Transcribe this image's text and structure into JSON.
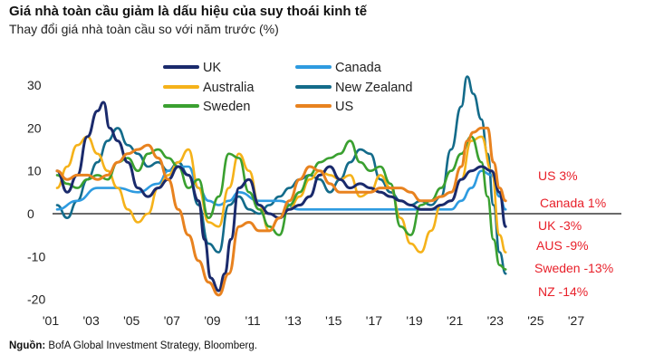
{
  "title": "Giá nhà toàn cầu giảm là dấu hiệu của suy thoái kinh tế",
  "subtitle": "Thay đổi giá nhà toàn cầu so với năm trước (%)",
  "source": {
    "label": "Nguồn:",
    "text": " BofA Global Investment Strategy, Bloomberg."
  },
  "colors": {
    "uk": "#1a2a6c",
    "canada": "#2e9be0",
    "australia": "#f5b21a",
    "new_zealand": "#136b8a",
    "sweden": "#3aa030",
    "us": "#e8821f",
    "end_label": "#e8202a"
  },
  "chart_data": {
    "type": "line",
    "title": "Giá nhà toàn cầu giảm là dấu hiệu của suy thoái kinh tế",
    "ylabel": "Thay đổi giá nhà toàn cầu so với năm trước (%)",
    "xlim": [
      2001,
      2027.5
    ],
    "ylim": [
      -22,
      32
    ],
    "x_ticks": [
      {
        "value": 2001,
        "label": "'01"
      },
      {
        "value": 2003,
        "label": "'03"
      },
      {
        "value": 2005,
        "label": "'05"
      },
      {
        "value": 2007,
        "label": "'07"
      },
      {
        "value": 2009,
        "label": "'09"
      },
      {
        "value": 2011,
        "label": "'11"
      },
      {
        "value": 2013,
        "label": "'13"
      },
      {
        "value": 2015,
        "label": "'15"
      },
      {
        "value": 2017,
        "label": "'17"
      },
      {
        "value": 2019,
        "label": "'19"
      },
      {
        "value": 2021,
        "label": "'21"
      },
      {
        "value": 2023,
        "label": "'23"
      },
      {
        "value": 2025,
        "label": "'25"
      },
      {
        "value": 2027,
        "label": "'27"
      }
    ],
    "y_ticks": [
      {
        "value": 30,
        "label": "30"
      },
      {
        "value": 20,
        "label": "20"
      },
      {
        "value": 10,
        "label": "10"
      },
      {
        "value": 0,
        "label": "0"
      },
      {
        "value": -10,
        "label": "-10"
      },
      {
        "value": -20,
        "label": "-20"
      }
    ],
    "legend": [
      {
        "key": "uk",
        "label": "UK"
      },
      {
        "key": "canada",
        "label": "Canada"
      },
      {
        "key": "australia",
        "label": "Australia"
      },
      {
        "key": "new_zealand",
        "label": "New Zealand"
      },
      {
        "key": "sweden",
        "label": "Sweden"
      },
      {
        "key": "us",
        "label": "US"
      }
    ],
    "end_labels": [
      {
        "key": "us",
        "text": "US 3%"
      },
      {
        "key": "canada",
        "text": "Canada 1%"
      },
      {
        "key": "uk",
        "text": "UK -3%"
      },
      {
        "key": "australia",
        "text": "AUS -9%"
      },
      {
        "key": "sweden",
        "text": "Sweden -13%"
      },
      {
        "key": "new_zealand",
        "text": "NZ -14%"
      }
    ],
    "series": [
      {
        "key": "new_zealand",
        "name": "New Zealand",
        "x": [
          2001.0,
          2001.5,
          2002.0,
          2002.5,
          2003.0,
          2003.5,
          2004.0,
          2004.5,
          2005.0,
          2005.5,
          2006.0,
          2006.5,
          2007.0,
          2007.5,
          2008.0,
          2008.5,
          2009.0,
          2009.5,
          2010.0,
          2010.5,
          2011.0,
          2011.5,
          2012.0,
          2012.5,
          2013.0,
          2013.5,
          2014.0,
          2014.5,
          2015.0,
          2015.5,
          2016.0,
          2016.5,
          2017.0,
          2017.5,
          2018.0,
          2018.5,
          2019.0,
          2019.5,
          2020.0,
          2020.5,
          2021.0,
          2021.3,
          2021.6,
          2022.0,
          2022.3,
          2022.6,
          2022.9,
          2023.2
        ],
        "y": [
          2,
          -1,
          3,
          8,
          12,
          17,
          20,
          16,
          14,
          11,
          12,
          10,
          12,
          9,
          2,
          -7,
          -9,
          2,
          4,
          1,
          0,
          2,
          4,
          6,
          8,
          9,
          8,
          5,
          8,
          12,
          15,
          14,
          8,
          5,
          3,
          2,
          3,
          2,
          4,
          15,
          25,
          32,
          28,
          22,
          14,
          2,
          -9,
          -14
        ]
      },
      {
        "key": "uk",
        "name": "UK",
        "x": [
          2001.0,
          2001.5,
          2002.0,
          2002.5,
          2003.0,
          2003.3,
          2003.6,
          2004.0,
          2004.5,
          2005.0,
          2005.5,
          2006.0,
          2006.5,
          2007.0,
          2007.5,
          2008.0,
          2008.3,
          2008.6,
          2009.0,
          2009.3,
          2009.6,
          2010.0,
          2010.5,
          2011.0,
          2011.5,
          2012.0,
          2012.5,
          2013.0,
          2013.5,
          2014.0,
          2014.5,
          2015.0,
          2015.5,
          2016.0,
          2016.5,
          2017.0,
          2017.5,
          2018.0,
          2018.5,
          2019.0,
          2019.5,
          2020.0,
          2020.5,
          2021.0,
          2021.5,
          2022.0,
          2022.5,
          2022.9,
          2023.2
        ],
        "y": [
          10,
          5,
          9,
          18,
          24,
          26,
          20,
          17,
          12,
          6,
          4,
          6,
          8,
          11,
          9,
          3,
          -6,
          -15,
          -18,
          -14,
          -6,
          6,
          8,
          2,
          0,
          -1,
          1,
          2,
          4,
          9,
          11,
          8,
          6,
          7,
          6,
          5,
          4,
          3,
          2,
          1,
          1,
          2,
          3,
          8,
          10,
          11,
          10,
          5,
          -3
        ]
      },
      {
        "key": "canada",
        "name": "Canada",
        "x": [
          2001.0,
          2002.0,
          2003.0,
          2004.0,
          2005.0,
          2006.0,
          2006.5,
          2007.0,
          2007.5,
          2008.0,
          2008.5,
          2009.0,
          2009.5,
          2010.0,
          2011.0,
          2012.0,
          2013.0,
          2014.0,
          2015.0,
          2016.0,
          2017.0,
          2018.0,
          2019.0,
          2020.0,
          2020.5,
          2021.0,
          2021.5,
          2022.0,
          2022.5,
          2022.9,
          2023.2
        ],
        "y": [
          1,
          3,
          6,
          6,
          5,
          7,
          10,
          11,
          11,
          6,
          3,
          2,
          3,
          5,
          3,
          3,
          1,
          1,
          1,
          1,
          1,
          1,
          1,
          1,
          1,
          3,
          6,
          10,
          9,
          4,
          1
        ]
      },
      {
        "key": "australia",
        "name": "Australia",
        "x": [
          2001.0,
          2001.5,
          2002.0,
          2002.5,
          2003.0,
          2003.5,
          2004.0,
          2004.5,
          2005.0,
          2005.5,
          2006.0,
          2006.5,
          2007.0,
          2007.5,
          2008.0,
          2008.5,
          2009.0,
          2009.5,
          2010.0,
          2010.5,
          2011.0,
          2011.5,
          2012.0,
          2012.5,
          2013.0,
          2013.5,
          2014.0,
          2014.5,
          2015.0,
          2015.5,
          2016.0,
          2016.5,
          2017.0,
          2017.5,
          2018.0,
          2018.5,
          2019.0,
          2019.5,
          2020.0,
          2020.5,
          2021.0,
          2021.5,
          2022.0,
          2022.5,
          2022.9,
          2023.2
        ],
        "y": [
          6,
          11,
          16,
          18,
          14,
          10,
          6,
          1,
          -2,
          0,
          6,
          9,
          12,
          15,
          6,
          -2,
          -3,
          6,
          14,
          10,
          2,
          -4,
          -1,
          1,
          4,
          8,
          10,
          9,
          8,
          9,
          4,
          5,
          9,
          6,
          -1,
          -7,
          -9,
          -4,
          2,
          3,
          8,
          17,
          18,
          10,
          -5,
          -9
        ]
      },
      {
        "key": "sweden",
        "name": "Sweden",
        "x": [
          2001.0,
          2001.5,
          2002.0,
          2002.5,
          2003.0,
          2003.5,
          2004.0,
          2004.5,
          2005.0,
          2005.5,
          2006.0,
          2006.5,
          2007.0,
          2007.5,
          2008.0,
          2008.5,
          2009.0,
          2009.5,
          2010.0,
          2010.5,
          2011.0,
          2011.5,
          2012.0,
          2012.5,
          2013.0,
          2013.5,
          2014.0,
          2014.5,
          2015.0,
          2015.5,
          2016.0,
          2016.5,
          2017.0,
          2017.5,
          2018.0,
          2018.5,
          2019.0,
          2019.5,
          2020.0,
          2020.5,
          2021.0,
          2021.5,
          2022.0,
          2022.3,
          2022.6,
          2022.9,
          2023.2
        ],
        "y": [
          9,
          7,
          6,
          8,
          9,
          8,
          12,
          13,
          10,
          14,
          15,
          13,
          11,
          6,
          8,
          -1,
          4,
          14,
          13,
          5,
          1,
          -3,
          -5,
          2,
          5,
          9,
          12,
          13,
          14,
          17,
          12,
          10,
          11,
          7,
          -3,
          -5,
          2,
          3,
          6,
          10,
          14,
          18,
          12,
          4,
          -6,
          -12,
          -13
        ]
      },
      {
        "key": "us",
        "name": "US",
        "x": [
          2001.0,
          2001.5,
          2002.0,
          2002.5,
          2003.0,
          2003.5,
          2004.0,
          2004.5,
          2005.0,
          2005.5,
          2006.0,
          2006.5,
          2007.0,
          2007.5,
          2008.0,
          2008.5,
          2009.0,
          2009.5,
          2010.0,
          2010.5,
          2011.0,
          2011.5,
          2012.0,
          2012.5,
          2013.0,
          2013.5,
          2014.0,
          2014.5,
          2015.0,
          2015.5,
          2016.0,
          2016.5,
          2017.0,
          2017.5,
          2018.0,
          2018.5,
          2019.0,
          2019.5,
          2020.0,
          2020.5,
          2021.0,
          2021.3,
          2021.6,
          2022.0,
          2022.3,
          2022.6,
          2022.9,
          2023.2
        ],
        "y": [
          10,
          8,
          9,
          9,
          8,
          9,
          12,
          14,
          15,
          16,
          13,
          8,
          1,
          -5,
          -11,
          -16,
          -19,
          -14,
          -3,
          -2,
          -4,
          -4,
          -1,
          3,
          8,
          11,
          10,
          7,
          5,
          5,
          5,
          5,
          6,
          6,
          6,
          5,
          3,
          3,
          4,
          5,
          11,
          17,
          19,
          20,
          20,
          12,
          6,
          3
        ]
      }
    ]
  }
}
